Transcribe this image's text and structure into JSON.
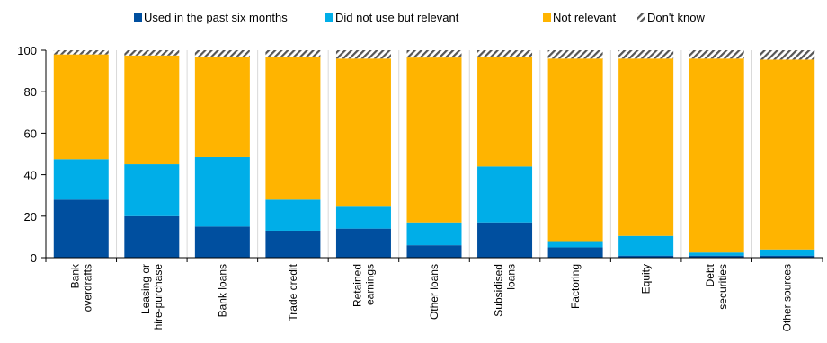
{
  "chart_data": {
    "type": "bar",
    "stacked": true,
    "categories": [
      "Bank overdrafts",
      "Leasing or hire-purchase",
      "Bank loans",
      "Trade credit",
      "Retained earnings",
      "Other loans",
      "Subsidised loans",
      "Factoring",
      "Equity",
      "Debt securities",
      "Other sources"
    ],
    "category_lines": [
      [
        "Bank",
        "overdrafts"
      ],
      [
        "Leasing or",
        "hire-purchase"
      ],
      [
        "Bank loans"
      ],
      [
        "Trade credit"
      ],
      [
        "Retained",
        "earnings"
      ],
      [
        "Other loans"
      ],
      [
        "Subsidised",
        "loans"
      ],
      [
        "Factoring"
      ],
      [
        "Equity"
      ],
      [
        "Debt",
        "securities"
      ],
      [
        "Other sources"
      ]
    ],
    "series": [
      {
        "name": "Used in the past six months",
        "color": "#004f9f",
        "pattern": "solid",
        "values": [
          28,
          20,
          15,
          13,
          14,
          6,
          17,
          5,
          1,
          1,
          1
        ]
      },
      {
        "name": "Did not use but relevant",
        "color": "#00aee8",
        "pattern": "solid",
        "values": [
          19.5,
          25,
          33.5,
          15,
          11,
          11,
          27,
          3,
          9.5,
          1.5,
          3
        ]
      },
      {
        "name": "Not relevant",
        "color": "#ffb400",
        "pattern": "solid",
        "values": [
          50.5,
          52.5,
          48.5,
          69,
          71,
          79.5,
          53,
          88,
          85.5,
          93.5,
          91.5
        ]
      },
      {
        "name": "Don't know",
        "color": "#555555",
        "pattern": "hatch",
        "values": [
          2,
          2.5,
          3,
          3,
          4,
          3.5,
          3,
          4,
          4,
          4,
          4.5
        ]
      }
    ],
    "ylim": [
      0,
      100
    ],
    "yticks": [
      0,
      20,
      40,
      60,
      80,
      100
    ],
    "title": "",
    "xlabel": "",
    "ylabel": "",
    "legend_position": "top-center",
    "grid": false
  }
}
